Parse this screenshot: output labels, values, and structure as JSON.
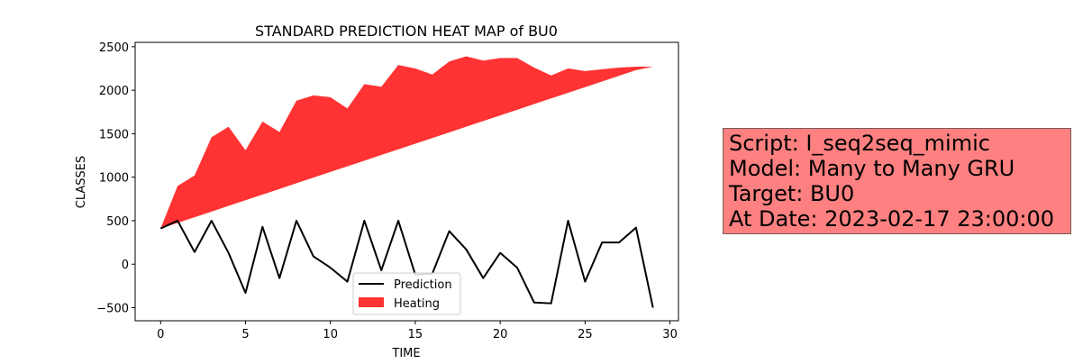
{
  "chart_data": {
    "type": "line",
    "title": "STANDARD PREDICTION HEAT MAP of BU0",
    "xlabel": "TIME",
    "ylabel": "CLASSES",
    "xlim": [
      -1.5,
      30.5
    ],
    "ylim": [
      -650,
      2550
    ],
    "xticks": [
      0,
      5,
      10,
      15,
      20,
      25,
      30
    ],
    "yticks": [
      -500,
      0,
      500,
      1000,
      1500,
      2000,
      2500
    ],
    "x": [
      0,
      1,
      2,
      3,
      4,
      5,
      6,
      7,
      8,
      9,
      10,
      11,
      12,
      13,
      14,
      15,
      16,
      17,
      18,
      19,
      20,
      21,
      22,
      23,
      24,
      25,
      26,
      27,
      28,
      29
    ],
    "series": [
      {
        "name": "Prediction",
        "kind": "line",
        "color": "#000000",
        "values": [
          410,
          500,
          140,
          500,
          130,
          -330,
          430,
          -160,
          500,
          90,
          -40,
          -200,
          500,
          -70,
          500,
          -120,
          -110,
          380,
          170,
          -160,
          130,
          -40,
          -440,
          -450,
          500,
          -200,
          250,
          250,
          420,
          -500
        ]
      },
      {
        "name": "Heating",
        "kind": "area",
        "color": "#ff0000",
        "upper": [
          410,
          900,
          1020,
          1460,
          1580,
          1310,
          1640,
          1520,
          1880,
          1940,
          1920,
          1790,
          2070,
          2040,
          2290,
          2250,
          2180,
          2330,
          2390,
          2340,
          2370,
          2370,
          2260,
          2170,
          2250,
          2220,
          2240,
          2260,
          2270,
          2270
        ],
        "lower": [
          410,
          475,
          540,
          605,
          670,
          735,
          800,
          865,
          930,
          995,
          1060,
          1125,
          1190,
          1255,
          1320,
          1385,
          1450,
          1515,
          1580,
          1645,
          1710,
          1775,
          1840,
          1905,
          1970,
          2035,
          2100,
          2165,
          2230,
          2270
        ]
      }
    ],
    "legend": {
      "position": "bottom-center",
      "entries": [
        "Prediction",
        "Heating"
      ]
    }
  },
  "info_box": {
    "lines": [
      "Script: I_seq2seq_mimic",
      "Model: Many to Many GRU",
      "Target: BU0",
      "At Date: 2023-02-17 23:00:00"
    ],
    "background": "#ff8080"
  }
}
